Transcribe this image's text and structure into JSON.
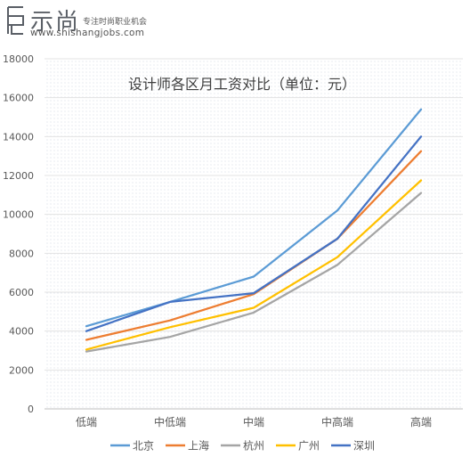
{
  "header": {
    "logo_name": "示尚",
    "slogan": "专注时尚职业机会",
    "url": "www.shishangjobs.com"
  },
  "chart_data": {
    "type": "line",
    "title": "设计师各区月工资对比（单位：元）",
    "categories": [
      "低端",
      "中低端",
      "中端",
      "中高端",
      "高端"
    ],
    "series": [
      {
        "name": "北京",
        "color": "#5b9bd5",
        "values": [
          4250,
          5500,
          6800,
          10200,
          15400
        ]
      },
      {
        "name": "上海",
        "color": "#ed7d31",
        "values": [
          3550,
          4550,
          5900,
          8750,
          13250
        ]
      },
      {
        "name": "杭州",
        "color": "#a5a5a5",
        "values": [
          2950,
          3700,
          4950,
          7400,
          11100
        ]
      },
      {
        "name": "广州",
        "color": "#ffc000",
        "values": [
          3050,
          4200,
          5200,
          7800,
          11750
        ]
      },
      {
        "name": "深圳",
        "color": "#4472c4",
        "values": [
          4000,
          5500,
          5950,
          8750,
          14000
        ]
      }
    ],
    "ylim": [
      0,
      18000
    ],
    "yticks": [
      0,
      2000,
      4000,
      6000,
      8000,
      10000,
      12000,
      14000,
      16000,
      18000
    ],
    "grid": true,
    "legend": "bottom"
  }
}
